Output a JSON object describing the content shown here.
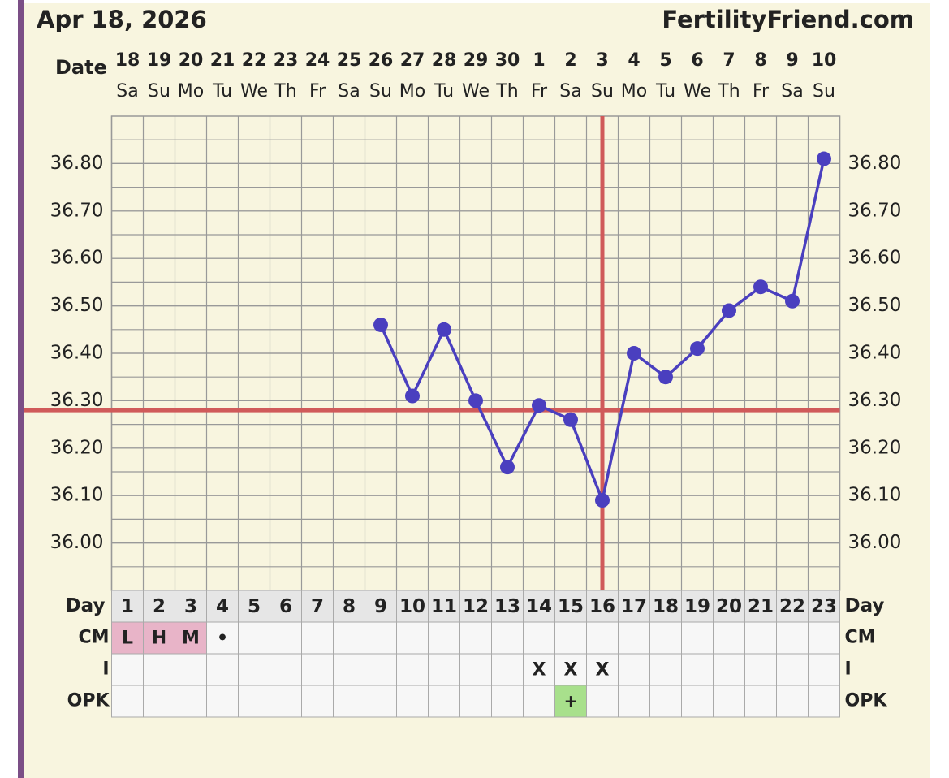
{
  "chart_data": {
    "type": "line",
    "title": "Apr 18, 2026",
    "source": "FertilityFriend.com",
    "date_label": "Date",
    "categories": [
      "18",
      "19",
      "20",
      "21",
      "22",
      "23",
      "24",
      "25",
      "26",
      "27",
      "28",
      "29",
      "30",
      "1",
      "2",
      "3",
      "4",
      "5",
      "6",
      "7",
      "8",
      "9",
      "10"
    ],
    "weekdays": [
      "Sa",
      "Su",
      "Mo",
      "Tu",
      "We",
      "Th",
      "Fr",
      "Sa",
      "Su",
      "Mo",
      "Tu",
      "We",
      "Th",
      "Fr",
      "Sa",
      "Su",
      "Mo",
      "Tu",
      "We",
      "Th",
      "Fr",
      "Sa",
      "Su"
    ],
    "series": [
      {
        "color": "#4a3fbf",
        "values": [
          null,
          null,
          null,
          null,
          null,
          null,
          null,
          null,
          36.46,
          36.31,
          36.45,
          36.3,
          36.16,
          36.29,
          36.26,
          36.09,
          36.4,
          36.35,
          36.41,
          36.49,
          36.54,
          36.51,
          36.81
        ]
      }
    ],
    "ylim": [
      35.9,
      36.9
    ],
    "yticks": [
      {
        "value": 36.0,
        "label": "36.00"
      },
      {
        "value": 36.1,
        "label": "36.10"
      },
      {
        "value": 36.2,
        "label": "36.20"
      },
      {
        "value": 36.3,
        "label": "36.30"
      },
      {
        "value": 36.4,
        "label": "36.40"
      },
      {
        "value": 36.5,
        "label": "36.50"
      },
      {
        "value": 36.6,
        "label": "36.60"
      },
      {
        "value": 36.7,
        "label": "36.70"
      },
      {
        "value": 36.8,
        "label": "36.80"
      }
    ],
    "grid_step": 0.05,
    "coverline": 36.28,
    "ovulation_day": 16,
    "marker_line_color": "#d05a5a",
    "day_label": "Day",
    "days": [
      1,
      2,
      3,
      4,
      5,
      6,
      7,
      8,
      9,
      10,
      11,
      12,
      13,
      14,
      15,
      16,
      17,
      18,
      19,
      20,
      21,
      22,
      23
    ],
    "rows": [
      {
        "label": "CM",
        "color": "#e8b4c8",
        "values": [
          "L",
          "H",
          "M",
          "•",
          null,
          null,
          null,
          null,
          null,
          null,
          null,
          null,
          null,
          null,
          null,
          null,
          null,
          null,
          null,
          null,
          null,
          null,
          null
        ]
      },
      {
        "label": "I",
        "values": [
          null,
          null,
          null,
          null,
          null,
          null,
          null,
          null,
          null,
          null,
          null,
          null,
          null,
          "X",
          "X",
          "X",
          null,
          null,
          null,
          null,
          null,
          null,
          null
        ]
      },
      {
        "label": "OPK",
        "color": "#a8e08c",
        "values": [
          null,
          null,
          null,
          null,
          null,
          null,
          null,
          null,
          null,
          null,
          null,
          null,
          null,
          null,
          "+",
          null,
          null,
          null,
          null,
          null,
          null,
          null,
          null
        ]
      }
    ]
  }
}
